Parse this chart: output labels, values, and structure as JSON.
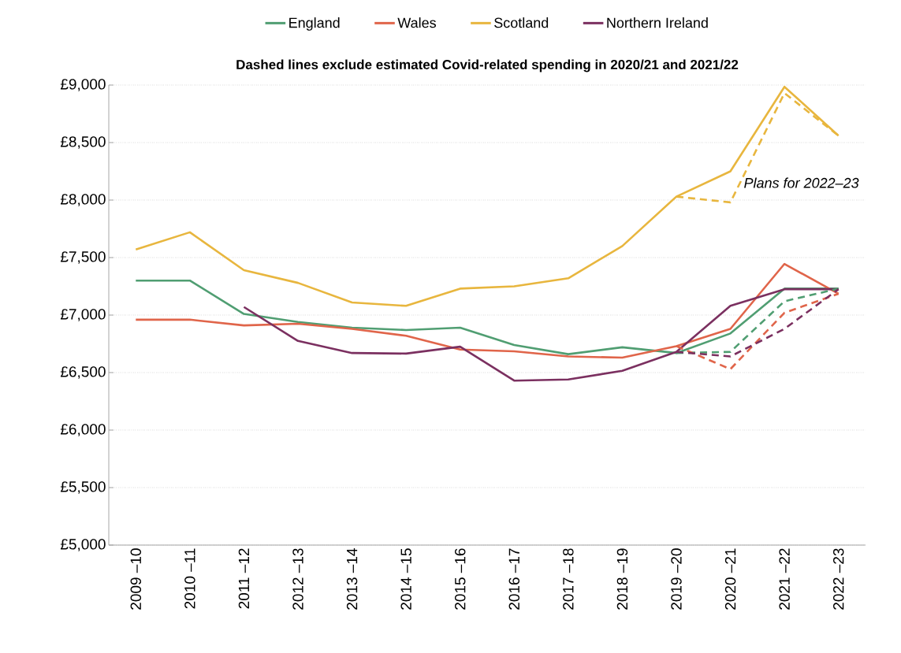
{
  "chart_data": {
    "type": "line",
    "title": "Dashed lines exclude estimated Covid-related spending in 2020/21 and 2021/22",
    "categories": [
      "2009 –10",
      "2010 –11",
      "2011 –12",
      "2012 –13",
      "2013 –14",
      "2014 –15",
      "2015 –16",
      "2016 –17",
      "2017 –18",
      "2018 –19",
      "2019 –20",
      "2020 –21",
      "2021 –22",
      "2022 –23"
    ],
    "series": [
      {
        "name": "England",
        "color": "#509e72",
        "line_style": "solid",
        "values": [
          7300,
          7300,
          7010,
          6940,
          6890,
          6870,
          6890,
          6740,
          6660,
          6720,
          6670,
          6840,
          7230,
          7230
        ]
      },
      {
        "name": "Wales",
        "color": "#e0654a",
        "line_style": "solid",
        "values": [
          6960,
          6960,
          6910,
          6925,
          6880,
          6820,
          6700,
          6685,
          6640,
          6630,
          6730,
          6880,
          7445,
          7185
        ]
      },
      {
        "name": "Scotland",
        "color": "#e8b63e",
        "line_style": "solid",
        "values": [
          7570,
          7720,
          7390,
          7280,
          7110,
          7080,
          7230,
          7250,
          7320,
          7600,
          8030,
          8250,
          8985,
          8560
        ]
      },
      {
        "name": "Northern Ireland",
        "color": "#7b3060",
        "line_style": "solid",
        "values": [
          null,
          null,
          7070,
          6775,
          6670,
          6665,
          6725,
          6430,
          6440,
          6515,
          6680,
          7080,
          7225,
          7225
        ]
      },
      {
        "color": "#509e72",
        "line_style": "dashed",
        "values": [
          null,
          null,
          null,
          null,
          null,
          null,
          null,
          null,
          null,
          null,
          6670,
          6680,
          7120,
          7230
        ]
      },
      {
        "color": "#e0654a",
        "line_style": "dashed",
        "values": [
          null,
          null,
          null,
          null,
          null,
          null,
          null,
          null,
          null,
          null,
          6730,
          6530,
          7020,
          7185
        ]
      },
      {
        "color": "#e8b63e",
        "line_style": "dashed",
        "values": [
          null,
          null,
          null,
          null,
          null,
          null,
          null,
          null,
          null,
          null,
          8030,
          7980,
          8930,
          8560
        ]
      },
      {
        "color": "#7b3060",
        "line_style": "dashed",
        "values": [
          null,
          null,
          null,
          null,
          null,
          null,
          null,
          null,
          null,
          null,
          6680,
          6640,
          6880,
          7225
        ]
      }
    ],
    "ylim": [
      5000,
      9000
    ],
    "yticks": [
      {
        "value": 5000,
        "label": "£5,000"
      },
      {
        "value": 5500,
        "label": "£5,500"
      },
      {
        "value": 6000,
        "label": "£6,000"
      },
      {
        "value": 6500,
        "label": "£6,500"
      },
      {
        "value": 7000,
        "label": "£7,000"
      },
      {
        "value": 7500,
        "label": "£7,500"
      },
      {
        "value": 8000,
        "label": "£8,000"
      },
      {
        "value": 8500,
        "label": "£8,500"
      },
      {
        "value": 9000,
        "label": "£9,000"
      }
    ],
    "grid": "y",
    "legend": "top",
    "marker": "none",
    "annotations": [
      "*Plans for 2022–23*"
    ]
  }
}
